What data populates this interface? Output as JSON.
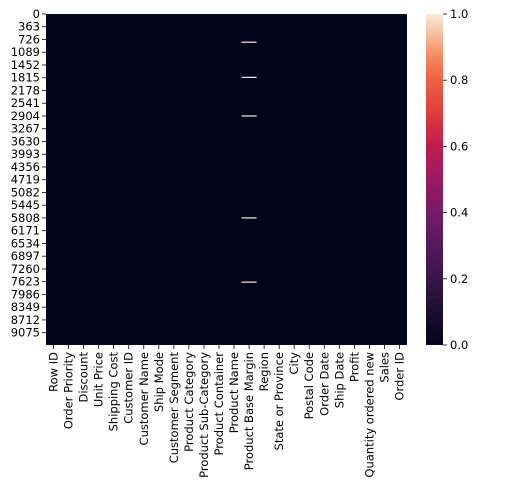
{
  "chart_data": {
    "type": "heatmap",
    "columns": [
      "Row ID",
      "Order Priority",
      "Discount",
      "Unit Price",
      "Shipping Cost",
      "Customer ID",
      "Customer Name",
      "Ship Mode",
      "Customer Segment",
      "Product Category",
      "Product Sub-Category",
      "Product Container",
      "Product Name",
      "Product Base Margin",
      "Region",
      "State or Province",
      "City",
      "Postal Code",
      "Order Date",
      "Ship Date",
      "Profit",
      "Quantity ordered new",
      "Sales",
      "Order ID"
    ],
    "row_ticks": [
      0,
      363,
      726,
      1089,
      1452,
      1815,
      2178,
      2541,
      2904,
      3267,
      3630,
      3993,
      4356,
      4719,
      5082,
      5445,
      5808,
      6171,
      6534,
      6897,
      7260,
      7623,
      7986,
      8349,
      8712,
      9075
    ],
    "row_count": 9426,
    "highlights": [
      {
        "column": "Product Base Margin",
        "rows": [
          800,
          1801,
          2901,
          5804,
          7633
        ],
        "value": 1
      }
    ],
    "base_value": 0,
    "colorbar": {
      "min": 0.0,
      "max": 1.0,
      "ticks": [
        "0.0",
        "0.2",
        "0.4",
        "0.6",
        "0.8",
        "1.0"
      ],
      "colormap": "rocket"
    },
    "colors": {
      "low": "#03051a",
      "high": "#faebdd"
    }
  }
}
